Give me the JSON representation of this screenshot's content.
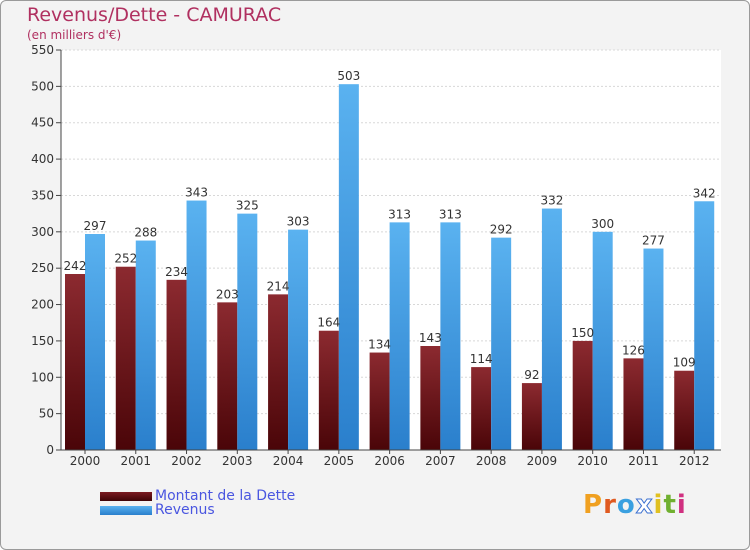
{
  "chart_data": {
    "type": "bar",
    "title": "Revenus/Dette - CAMURAC",
    "subtitle": "(en milliers d'€)",
    "categories": [
      "2000",
      "2001",
      "2002",
      "2003",
      "2004",
      "2005",
      "2006",
      "2007",
      "2008",
      "2009",
      "2010",
      "2011",
      "2012"
    ],
    "series": [
      {
        "name": "Montant de la Dette",
        "color": "#6b0d12",
        "values": [
          242,
          252,
          234,
          203,
          214,
          164,
          134,
          143,
          114,
          92,
          150,
          126,
          109
        ]
      },
      {
        "name": "Revenus",
        "color": "#2f8fe0",
        "values": [
          297,
          288,
          343,
          325,
          303,
          503,
          313,
          313,
          292,
          332,
          300,
          277,
          342
        ]
      }
    ],
    "ylim": [
      0,
      550
    ],
    "yticks": [
      0,
      50,
      100,
      150,
      200,
      250,
      300,
      350,
      400,
      450,
      500,
      550
    ],
    "grid": true,
    "legend": "bottom-left"
  },
  "logo": {
    "letters": [
      "P",
      "r",
      "o",
      "x",
      "i",
      "t",
      "i"
    ],
    "colors": [
      "#f0a020",
      "#e05a20",
      "#3aa0e0",
      "#ffffff",
      "#e0c020",
      "#70b030",
      "#d03080"
    ]
  }
}
